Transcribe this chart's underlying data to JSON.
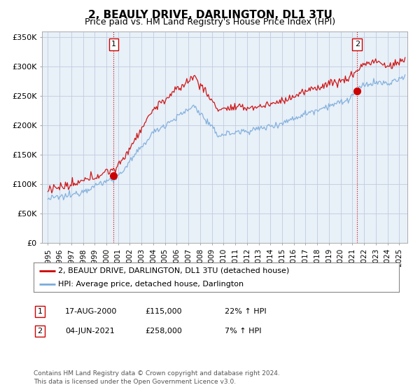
{
  "title": "2, BEAULY DRIVE, DARLINGTON, DL1 3TU",
  "subtitle": "Price paid vs. HM Land Registry's House Price Index (HPI)",
  "title_fontsize": 11,
  "subtitle_fontsize": 9,
  "ylabel_ticks": [
    "£0",
    "£50K",
    "£100K",
    "£150K",
    "£200K",
    "£250K",
    "£300K",
    "£350K"
  ],
  "ytick_values": [
    0,
    50000,
    100000,
    150000,
    200000,
    250000,
    300000,
    350000
  ],
  "ylim": [
    0,
    360000
  ],
  "xlim_start": 1994.5,
  "xlim_end": 2025.7,
  "xtick_years": [
    1995,
    1996,
    1997,
    1998,
    1999,
    2000,
    2001,
    2002,
    2003,
    2004,
    2005,
    2006,
    2007,
    2008,
    2009,
    2010,
    2011,
    2012,
    2013,
    2014,
    2015,
    2016,
    2017,
    2018,
    2019,
    2020,
    2021,
    2022,
    2023,
    2024,
    2025
  ],
  "red_line_color": "#cc0000",
  "blue_line_color": "#7aabdb",
  "chart_bg_color": "#e8f0f8",
  "background_color": "#ffffff",
  "grid_color": "#c0cce0",
  "sale1_x": 2000.62,
  "sale1_y": 115000,
  "sale1_label": "1",
  "sale2_x": 2021.42,
  "sale2_y": 258000,
  "sale2_label": "2",
  "vline_color": "#cc0000",
  "legend_red_label": "2, BEAULY DRIVE, DARLINGTON, DL1 3TU (detached house)",
  "legend_blue_label": "HPI: Average price, detached house, Darlington",
  "table_row1_num": "1",
  "table_row1_date": "17-AUG-2000",
  "table_row1_price": "£115,000",
  "table_row1_hpi": "22% ↑ HPI",
  "table_row2_num": "2",
  "table_row2_date": "04-JUN-2021",
  "table_row2_price": "£258,000",
  "table_row2_hpi": "7% ↑ HPI",
  "footnote1": "Contains HM Land Registry data © Crown copyright and database right 2024.",
  "footnote2": "This data is licensed under the Open Government Licence v3.0."
}
